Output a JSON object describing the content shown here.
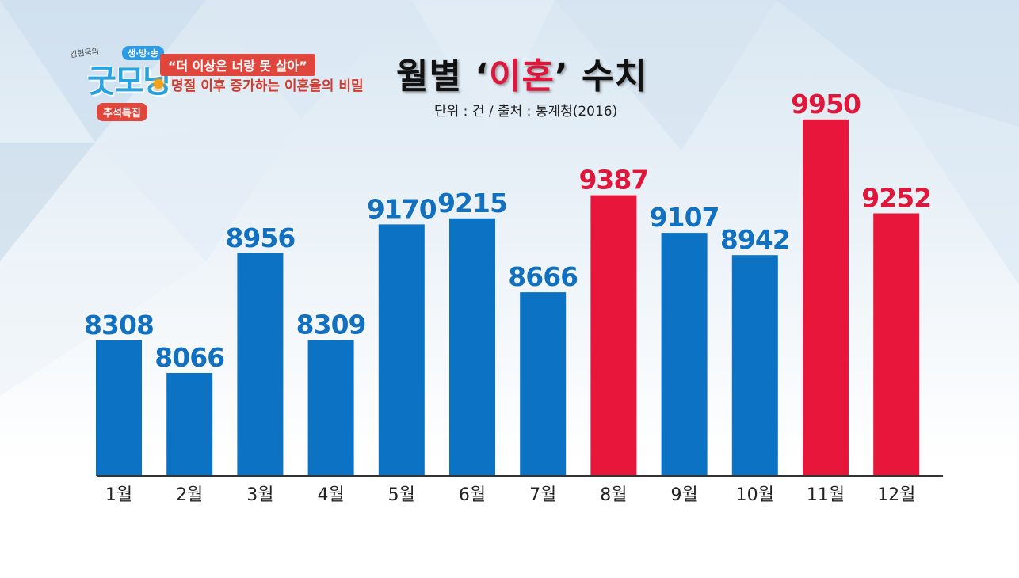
{
  "header": {
    "show_host": "김현욱의",
    "show_live": "생·방·송",
    "show_name": "굿모닝",
    "special_tag": "추석특집",
    "subtitle_quote": "“더 이상은 너랑 못 살아”",
    "subtitle_line": "명절 이후 증가하는 이혼율의 비밀"
  },
  "title": {
    "pre": "월별 ",
    "open_quote": "‘",
    "highlight": "이혼",
    "close_quote": "’",
    "post": " 수치"
  },
  "source_note": "단위 : 건  /  출처 : 통계청(2016)",
  "colors": {
    "blue_bar": "#0c73c4",
    "blue_label": "#1170c0",
    "red_bar": "#e8163b",
    "red_label": "#e0173c",
    "axis": "#333333"
  },
  "chart_data": {
    "type": "bar",
    "title": "월별 ‘이혼’ 수치",
    "xlabel": "",
    "ylabel": "",
    "unit": "건",
    "categories": [
      "1월",
      "2월",
      "3월",
      "4월",
      "5월",
      "6월",
      "7월",
      "8월",
      "9월",
      "10월",
      "11월",
      "12월"
    ],
    "values": [
      8308,
      8066,
      8956,
      8309,
      9170,
      9215,
      8666,
      9387,
      9107,
      8942,
      9950,
      9252
    ],
    "highlighted": [
      false,
      false,
      false,
      false,
      false,
      false,
      false,
      true,
      false,
      false,
      true,
      true
    ],
    "grid": false,
    "legend": "none"
  }
}
